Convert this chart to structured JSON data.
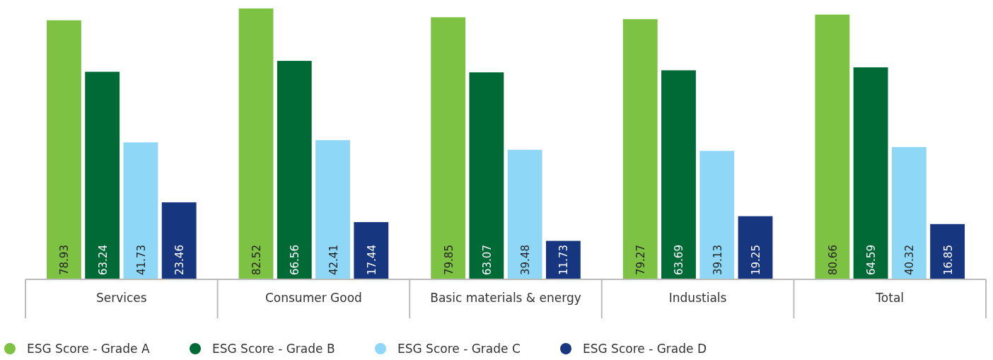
{
  "chart_data": {
    "type": "bar",
    "categories": [
      "Services",
      "Consumer Good",
      "Basic materials & energy",
      "Industials",
      "Total"
    ],
    "series": [
      {
        "name": "ESG Score - Grade A",
        "color": "#7dc242",
        "values": [
          78.93,
          82.52,
          79.85,
          79.27,
          80.66
        ]
      },
      {
        "name": "ESG Score - Grade B",
        "color": "#006a36",
        "values": [
          63.24,
          66.56,
          63.07,
          63.69,
          64.59
        ]
      },
      {
        "name": "ESG Score - Grade C",
        "color": "#8fd7f7",
        "values": [
          41.73,
          42.41,
          39.48,
          39.13,
          40.32
        ]
      },
      {
        "name": "ESG Score - Grade D",
        "color": "#16367f",
        "values": [
          23.46,
          17.44,
          11.73,
          19.25,
          16.85
        ]
      }
    ],
    "data_labels": true,
    "legend": "bottom left",
    "marker": "circle",
    "grid": false
  }
}
